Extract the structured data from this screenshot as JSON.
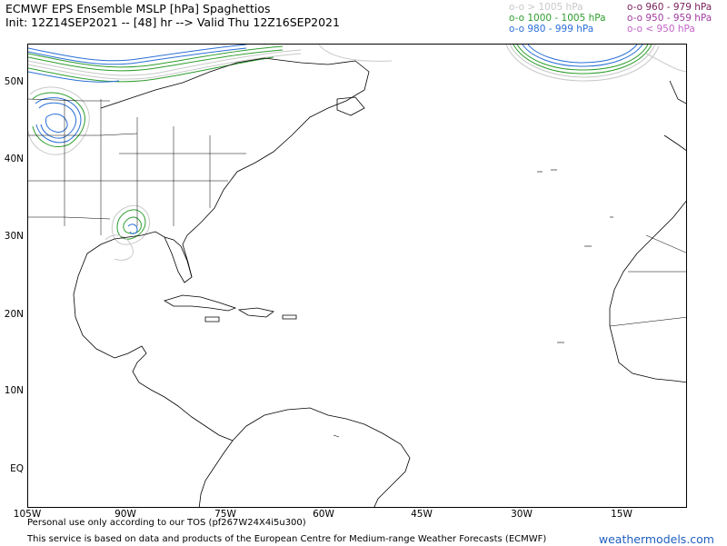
{
  "header": {
    "title": "ECMWF EPS Ensemble MSLP [hPa] Spaghettios",
    "subtitle": "Init: 12Z14SEP2021 -- [48] hr --> Valid Thu 12Z16SEP2021"
  },
  "legend": {
    "left": [
      {
        "label": "o-o > 1005 hPa",
        "color": "#c8c8c8"
      },
      {
        "label": "o-o 1000 - 1005 hPa",
        "color": "#2e9e2e"
      },
      {
        "label": "o-o 980 - 999 hPa",
        "color": "#2a6fd6"
      }
    ],
    "right": [
      {
        "label": "o-o 960 - 979 hPa",
        "color": "#7a1f5a"
      },
      {
        "label": "o-o 950 - 959 hPa",
        "color": "#a23ca2"
      },
      {
        "label": "o-o < 950 hPa",
        "color": "#c264c8"
      }
    ]
  },
  "axes": {
    "y_labels": [
      "50N",
      "40N",
      "30N",
      "20N",
      "10N",
      "EQ"
    ],
    "x_labels": [
      "105W",
      "90W",
      "75W",
      "60W",
      "45W",
      "30W",
      "15W"
    ]
  },
  "footer": {
    "tos": "Personal use only according to our TOS (pf267W24X4i5u300)",
    "credit": "This service is based on data and products of the European Centre for Medium-range Weather Forecasts (ECMWF)",
    "brand": "weathermodels.com"
  },
  "colors": {
    "gray": "#c8c8c8",
    "green": "#2e9e2e",
    "blue": "#2a6fd6"
  }
}
